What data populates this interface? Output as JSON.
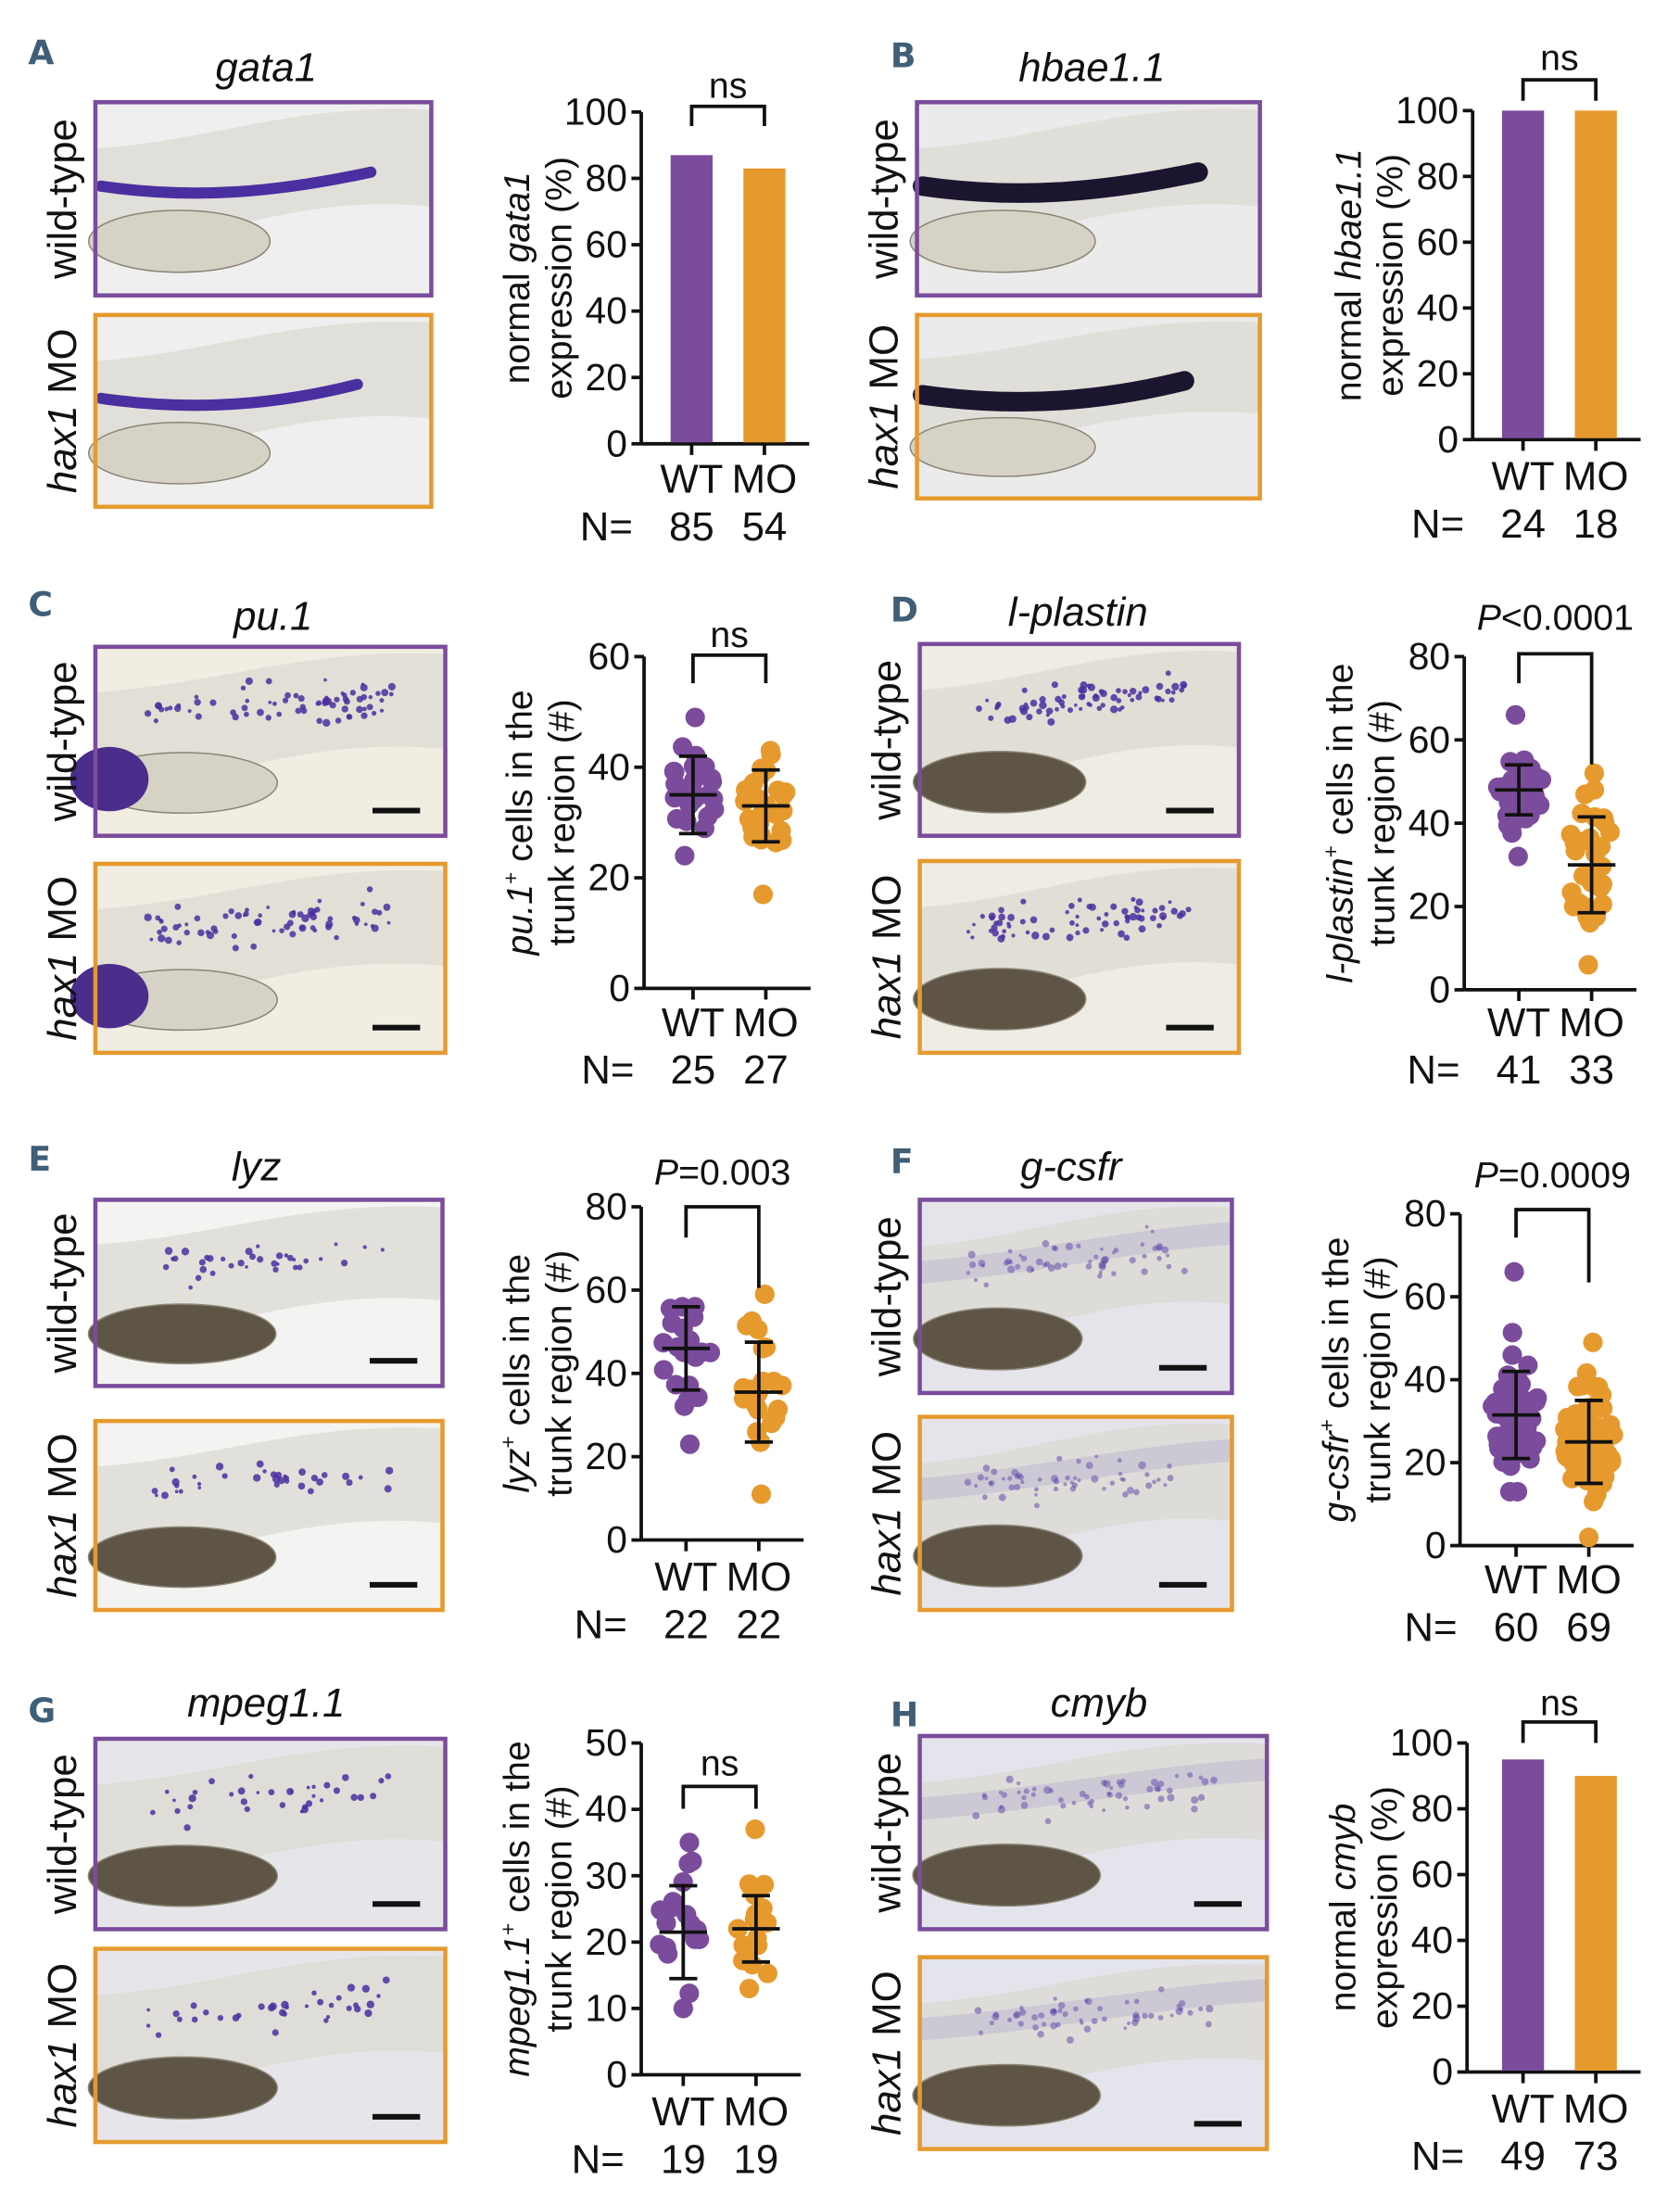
{
  "colors": {
    "wt": "#7b4c9c",
    "mo": "#e69a2e",
    "panel_label": "#3f5f78",
    "stain": "#4a2fa0"
  },
  "row_labels": {
    "wild_type": "wild-type",
    "hax1_italic": "hax1",
    "mo_suffix": " MO"
  },
  "n_prefix": "N=",
  "chart_data": [
    {
      "panel": "A",
      "type": "bar",
      "title": "gata1",
      "ylabel_prefix": "normal ",
      "ylabel_italic": "gata1",
      "ylabel_sup": "",
      "ylabel_rest": "",
      "ylabel_line2": "expression (%)",
      "categories": [
        "WT",
        "MO"
      ],
      "values": [
        87,
        83
      ],
      "n": [
        85,
        54
      ],
      "ylim": [
        0,
        100
      ],
      "yticks": [
        0,
        20,
        40,
        60,
        80,
        100
      ],
      "significance": {
        "italic": "",
        "text": "ns"
      }
    },
    {
      "panel": "B",
      "type": "bar",
      "title": "hbae1.1",
      "ylabel_prefix": "normal ",
      "ylabel_italic": "hbae1.1",
      "ylabel_sup": "",
      "ylabel_rest": "",
      "ylabel_line2": "expression (%)",
      "categories": [
        "WT",
        "MO"
      ],
      "values": [
        100,
        100
      ],
      "n": [
        24,
        18
      ],
      "ylim": [
        0,
        100
      ],
      "yticks": [
        0,
        20,
        40,
        60,
        80,
        100
      ],
      "significance": {
        "italic": "",
        "text": "ns"
      }
    },
    {
      "panel": "C",
      "type": "scatter",
      "title": "pu.1",
      "ylabel_prefix": "",
      "ylabel_italic": "pu.1",
      "ylabel_sup": "+",
      "ylabel_rest": " cells in the",
      "ylabel_line2": "trunk region (#)",
      "categories": [
        "WT",
        "MO"
      ],
      "mean": [
        35,
        33
      ],
      "sd": [
        7,
        6.5
      ],
      "min": [
        24,
        17
      ],
      "max": [
        49,
        43
      ],
      "n": [
        25,
        27
      ],
      "ylim": [
        0,
        60
      ],
      "yticks": [
        0,
        20,
        40,
        60
      ],
      "significance": {
        "italic": "",
        "text": "ns"
      }
    },
    {
      "panel": "D",
      "type": "scatter",
      "title": "l-plastin",
      "ylabel_prefix": "",
      "ylabel_italic": "l-plastin",
      "ylabel_sup": "+",
      "ylabel_rest": " cells in the",
      "ylabel_line2": "trunk region (#)",
      "categories": [
        "WT",
        "MO"
      ],
      "mean": [
        48,
        30
      ],
      "sd": [
        6,
        11.5
      ],
      "min": [
        32,
        6
      ],
      "max": [
        66,
        52
      ],
      "n": [
        41,
        33
      ],
      "ylim": [
        0,
        80
      ],
      "yticks": [
        0,
        20,
        40,
        60,
        80
      ],
      "significance": {
        "italic": "P",
        "text": "<0.0001"
      }
    },
    {
      "panel": "E",
      "type": "scatter",
      "title": "lyz",
      "ylabel_prefix": "",
      "ylabel_italic": "lyz",
      "ylabel_sup": "+",
      "ylabel_rest": " cells in the",
      "ylabel_line2": "trunk region (#)",
      "categories": [
        "WT",
        "MO"
      ],
      "mean": [
        46,
        35.5
      ],
      "sd": [
        10,
        12
      ],
      "min": [
        23,
        11
      ],
      "max": [
        56,
        59
      ],
      "n": [
        22,
        22
      ],
      "ylim": [
        0,
        80
      ],
      "yticks": [
        0,
        20,
        40,
        60,
        80
      ],
      "significance": {
        "italic": "P",
        "text": "=0.003"
      }
    },
    {
      "panel": "F",
      "type": "scatter",
      "title": "g-csfr",
      "ylabel_prefix": "",
      "ylabel_italic": "g-csfr",
      "ylabel_sup": "+",
      "ylabel_rest": " cells in the",
      "ylabel_line2": "trunk region (#)",
      "categories": [
        "WT",
        "MO"
      ],
      "mean": [
        31.5,
        25
      ],
      "sd": [
        10.5,
        10
      ],
      "min": [
        13,
        2
      ],
      "max": [
        66,
        49
      ],
      "n": [
        60,
        69
      ],
      "ylim": [
        0,
        80
      ],
      "yticks": [
        0,
        20,
        40,
        60,
        80
      ],
      "significance": {
        "italic": "P",
        "text": "=0.0009"
      }
    },
    {
      "panel": "G",
      "type": "scatter",
      "title": "mpeg1.1",
      "ylabel_prefix": "",
      "ylabel_italic": "mpeg1.1",
      "ylabel_sup": "+",
      "ylabel_rest": " cells in the",
      "ylabel_line2": "trunk region (#)",
      "categories": [
        "WT",
        "MO"
      ],
      "mean": [
        21.5,
        22
      ],
      "sd": [
        7,
        5
      ],
      "min": [
        10,
        13
      ],
      "max": [
        35,
        37
      ],
      "n": [
        19,
        19
      ],
      "ylim": [
        0,
        50
      ],
      "yticks": [
        0,
        10,
        20,
        30,
        40,
        50
      ],
      "significance": {
        "italic": "",
        "text": "ns"
      }
    },
    {
      "panel": "H",
      "type": "bar",
      "title": "cmyb",
      "ylabel_prefix": "normal ",
      "ylabel_italic": "cmyb",
      "ylabel_sup": "",
      "ylabel_rest": "",
      "ylabel_line2": "expression (%)",
      "categories": [
        "WT",
        "MO"
      ],
      "values": [
        95,
        90
      ],
      "n": [
        49,
        73
      ],
      "ylim": [
        0,
        100
      ],
      "yticks": [
        0,
        20,
        40,
        60,
        80,
        100
      ],
      "significance": {
        "italic": "",
        "text": "ns"
      }
    }
  ]
}
